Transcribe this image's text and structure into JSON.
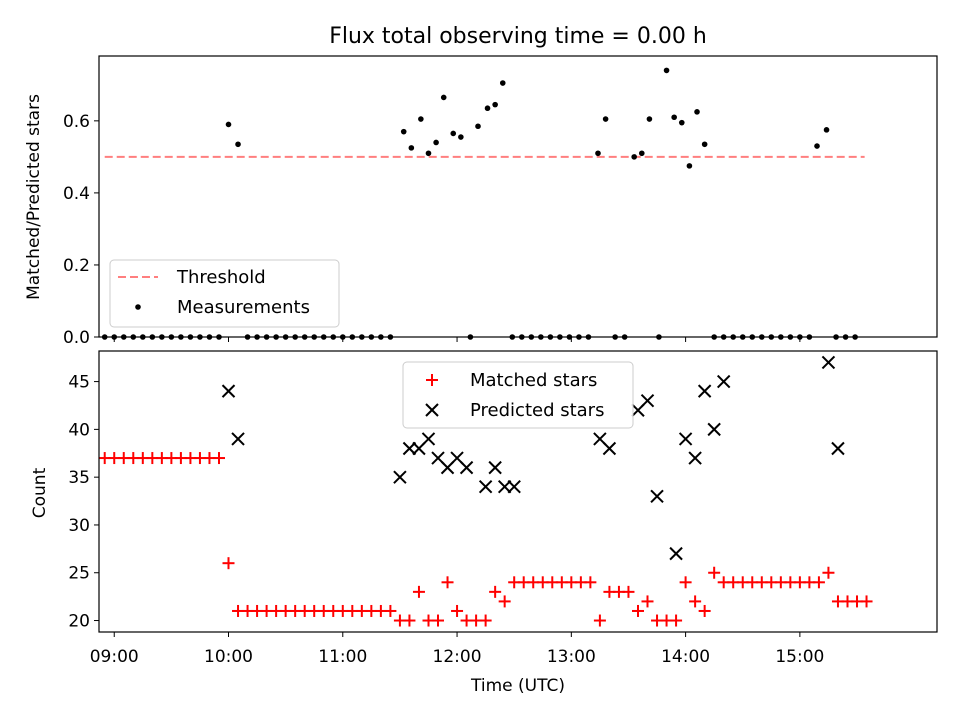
{
  "chart_data": [
    {
      "type": "scatter",
      "title": "Flux total observing time = 0.00 h",
      "xlabel": "",
      "ylabel": "Matched/Predicted stars",
      "xlim": [
        "08:52",
        "16:12"
      ],
      "ylim": [
        0,
        0.78
      ],
      "yticks": [
        "0.0",
        "0.2",
        "0.4",
        "0.6"
      ],
      "legend_position": "lower-left",
      "colors": {
        "threshold": "#ff7f7f",
        "measurements": "#000000"
      },
      "threshold": {
        "name": "Threshold",
        "y": 0.5,
        "x_start": "08:55",
        "x_end": "15:34"
      },
      "series": [
        {
          "name": "Measurements",
          "points": [
            [
              "08:55",
              0
            ],
            [
              "09:00",
              0
            ],
            [
              "09:05",
              0
            ],
            [
              "09:10",
              0
            ],
            [
              "09:15",
              0
            ],
            [
              "09:20",
              0
            ],
            [
              "09:25",
              0
            ],
            [
              "09:30",
              0
            ],
            [
              "09:35",
              0
            ],
            [
              "09:40",
              0
            ],
            [
              "09:45",
              0
            ],
            [
              "09:50",
              0
            ],
            [
              "09:55",
              0
            ],
            [
              "10:00",
              0.59
            ],
            [
              "10:05",
              0.535
            ],
            [
              "10:10",
              0
            ],
            [
              "10:15",
              0
            ],
            [
              "10:20",
              0
            ],
            [
              "10:25",
              0
            ],
            [
              "10:30",
              0
            ],
            [
              "10:35",
              0
            ],
            [
              "10:40",
              0
            ],
            [
              "10:45",
              0
            ],
            [
              "10:50",
              0
            ],
            [
              "10:55",
              0
            ],
            [
              "11:00",
              0
            ],
            [
              "11:05",
              0
            ],
            [
              "11:10",
              0
            ],
            [
              "11:15",
              0
            ],
            [
              "11:20",
              0
            ],
            [
              "11:25",
              0
            ],
            [
              "11:32",
              0.57
            ],
            [
              "11:36",
              0.525
            ],
            [
              "11:41",
              0.605
            ],
            [
              "11:45",
              0.51
            ],
            [
              "11:49",
              0.54
            ],
            [
              "11:53",
              0.665
            ],
            [
              "11:58",
              0.565
            ],
            [
              "12:02",
              0.555
            ],
            [
              "12:07",
              0
            ],
            [
              "12:11",
              0.585
            ],
            [
              "12:16",
              0.635
            ],
            [
              "12:20",
              0.645
            ],
            [
              "12:24",
              0.705
            ],
            [
              "12:29",
              0
            ],
            [
              "12:34",
              0
            ],
            [
              "12:39",
              0
            ],
            [
              "12:44",
              0
            ],
            [
              "12:49",
              0
            ],
            [
              "12:54",
              0
            ],
            [
              "12:59",
              0
            ],
            [
              "13:04",
              0
            ],
            [
              "13:09",
              0
            ],
            [
              "13:14",
              0.51
            ],
            [
              "13:18",
              0.605
            ],
            [
              "13:23",
              0
            ],
            [
              "13:28",
              0
            ],
            [
              "13:33",
              0.5
            ],
            [
              "13:37",
              0.51
            ],
            [
              "13:41",
              0.605
            ],
            [
              "13:46",
              0
            ],
            [
              "13:50",
              0.74
            ],
            [
              "13:54",
              0.61
            ],
            [
              "13:58",
              0.595
            ],
            [
              "14:02",
              0.475
            ],
            [
              "14:06",
              0.625
            ],
            [
              "14:10",
              0.535
            ],
            [
              "14:15",
              0
            ],
            [
              "14:20",
              0
            ],
            [
              "14:25",
              0
            ],
            [
              "14:30",
              0
            ],
            [
              "14:35",
              0
            ],
            [
              "14:40",
              0
            ],
            [
              "14:45",
              0
            ],
            [
              "14:50",
              0
            ],
            [
              "14:55",
              0
            ],
            [
              "15:00",
              0
            ],
            [
              "15:05",
              0
            ],
            [
              "15:09",
              0.53
            ],
            [
              "15:14",
              0.575
            ],
            [
              "15:19",
              0
            ],
            [
              "15:24",
              0
            ],
            [
              "15:29",
              0
            ]
          ]
        }
      ]
    },
    {
      "type": "scatter",
      "title": "",
      "xlabel": "Time (UTC)",
      "ylabel": "Count",
      "xlim": [
        "08:52",
        "16:12"
      ],
      "ylim": [
        18.8,
        48.2
      ],
      "xticks": [
        "09:00",
        "10:00",
        "11:00",
        "12:00",
        "13:00",
        "14:00",
        "15:00"
      ],
      "yticks": [
        "20",
        "25",
        "30",
        "35",
        "40",
        "45"
      ],
      "legend_position": "upper-center",
      "colors": {
        "matched": "#ff0000",
        "predicted": "#000000"
      },
      "series": [
        {
          "name": "Matched stars",
          "marker": "plus",
          "points": [
            [
              "08:55",
              37
            ],
            [
              "09:00",
              37
            ],
            [
              "09:05",
              37
            ],
            [
              "09:10",
              37
            ],
            [
              "09:15",
              37
            ],
            [
              "09:20",
              37
            ],
            [
              "09:25",
              37
            ],
            [
              "09:30",
              37
            ],
            [
              "09:35",
              37
            ],
            [
              "09:40",
              37
            ],
            [
              "09:45",
              37
            ],
            [
              "09:50",
              37
            ],
            [
              "09:55",
              37
            ],
            [
              "10:00",
              26
            ],
            [
              "10:05",
              21
            ],
            [
              "10:10",
              21
            ],
            [
              "10:15",
              21
            ],
            [
              "10:20",
              21
            ],
            [
              "10:25",
              21
            ],
            [
              "10:30",
              21
            ],
            [
              "10:35",
              21
            ],
            [
              "10:40",
              21
            ],
            [
              "10:45",
              21
            ],
            [
              "10:50",
              21
            ],
            [
              "10:55",
              21
            ],
            [
              "11:00",
              21
            ],
            [
              "11:05",
              21
            ],
            [
              "11:10",
              21
            ],
            [
              "11:15",
              21
            ],
            [
              "11:20",
              21
            ],
            [
              "11:25",
              21
            ],
            [
              "11:30",
              20
            ],
            [
              "11:35",
              20
            ],
            [
              "11:40",
              23
            ],
            [
              "11:45",
              20
            ],
            [
              "11:50",
              20
            ],
            [
              "11:55",
              24
            ],
            [
              "12:00",
              21
            ],
            [
              "12:05",
              20
            ],
            [
              "12:10",
              20
            ],
            [
              "12:15",
              20
            ],
            [
              "12:20",
              23
            ],
            [
              "12:25",
              22
            ],
            [
              "12:30",
              24
            ],
            [
              "12:35",
              24
            ],
            [
              "12:40",
              24
            ],
            [
              "12:45",
              24
            ],
            [
              "12:50",
              24
            ],
            [
              "12:55",
              24
            ],
            [
              "13:00",
              24
            ],
            [
              "13:05",
              24
            ],
            [
              "13:10",
              24
            ],
            [
              "13:15",
              20
            ],
            [
              "13:20",
              23
            ],
            [
              "13:25",
              23
            ],
            [
              "13:30",
              23
            ],
            [
              "13:35",
              21
            ],
            [
              "13:40",
              22
            ],
            [
              "13:45",
              20
            ],
            [
              "13:50",
              20
            ],
            [
              "13:55",
              20
            ],
            [
              "14:00",
              24
            ],
            [
              "14:05",
              22
            ],
            [
              "14:10",
              21
            ],
            [
              "14:15",
              25
            ],
            [
              "14:20",
              24
            ],
            [
              "14:25",
              24
            ],
            [
              "14:30",
              24
            ],
            [
              "14:35",
              24
            ],
            [
              "14:40",
              24
            ],
            [
              "14:45",
              24
            ],
            [
              "14:50",
              24
            ],
            [
              "14:55",
              24
            ],
            [
              "15:00",
              24
            ],
            [
              "15:05",
              24
            ],
            [
              "15:10",
              24
            ],
            [
              "15:15",
              25
            ],
            [
              "15:20",
              22
            ],
            [
              "15:25",
              22
            ],
            [
              "15:30",
              22
            ],
            [
              "15:35",
              22
            ]
          ]
        },
        {
          "name": "Predicted stars",
          "marker": "x",
          "points": [
            [
              "10:00",
              44
            ],
            [
              "10:05",
              39
            ],
            [
              "11:30",
              35
            ],
            [
              "11:35",
              38
            ],
            [
              "11:40",
              38
            ],
            [
              "11:45",
              39
            ],
            [
              "11:50",
              37
            ],
            [
              "11:55",
              36
            ],
            [
              "12:00",
              37
            ],
            [
              "12:05",
              36
            ],
            [
              "12:15",
              34
            ],
            [
              "12:20",
              36
            ],
            [
              "12:25",
              34
            ],
            [
              "12:30",
              34
            ],
            [
              "13:15",
              39
            ],
            [
              "13:20",
              38
            ],
            [
              "13:35",
              42
            ],
            [
              "13:40",
              43
            ],
            [
              "13:45",
              33
            ],
            [
              "13:55",
              27
            ],
            [
              "14:00",
              39
            ],
            [
              "14:05",
              37
            ],
            [
              "14:10",
              44
            ],
            [
              "14:15",
              40
            ],
            [
              "14:20",
              45
            ],
            [
              "15:15",
              47
            ],
            [
              "15:20",
              38
            ]
          ]
        }
      ]
    }
  ]
}
